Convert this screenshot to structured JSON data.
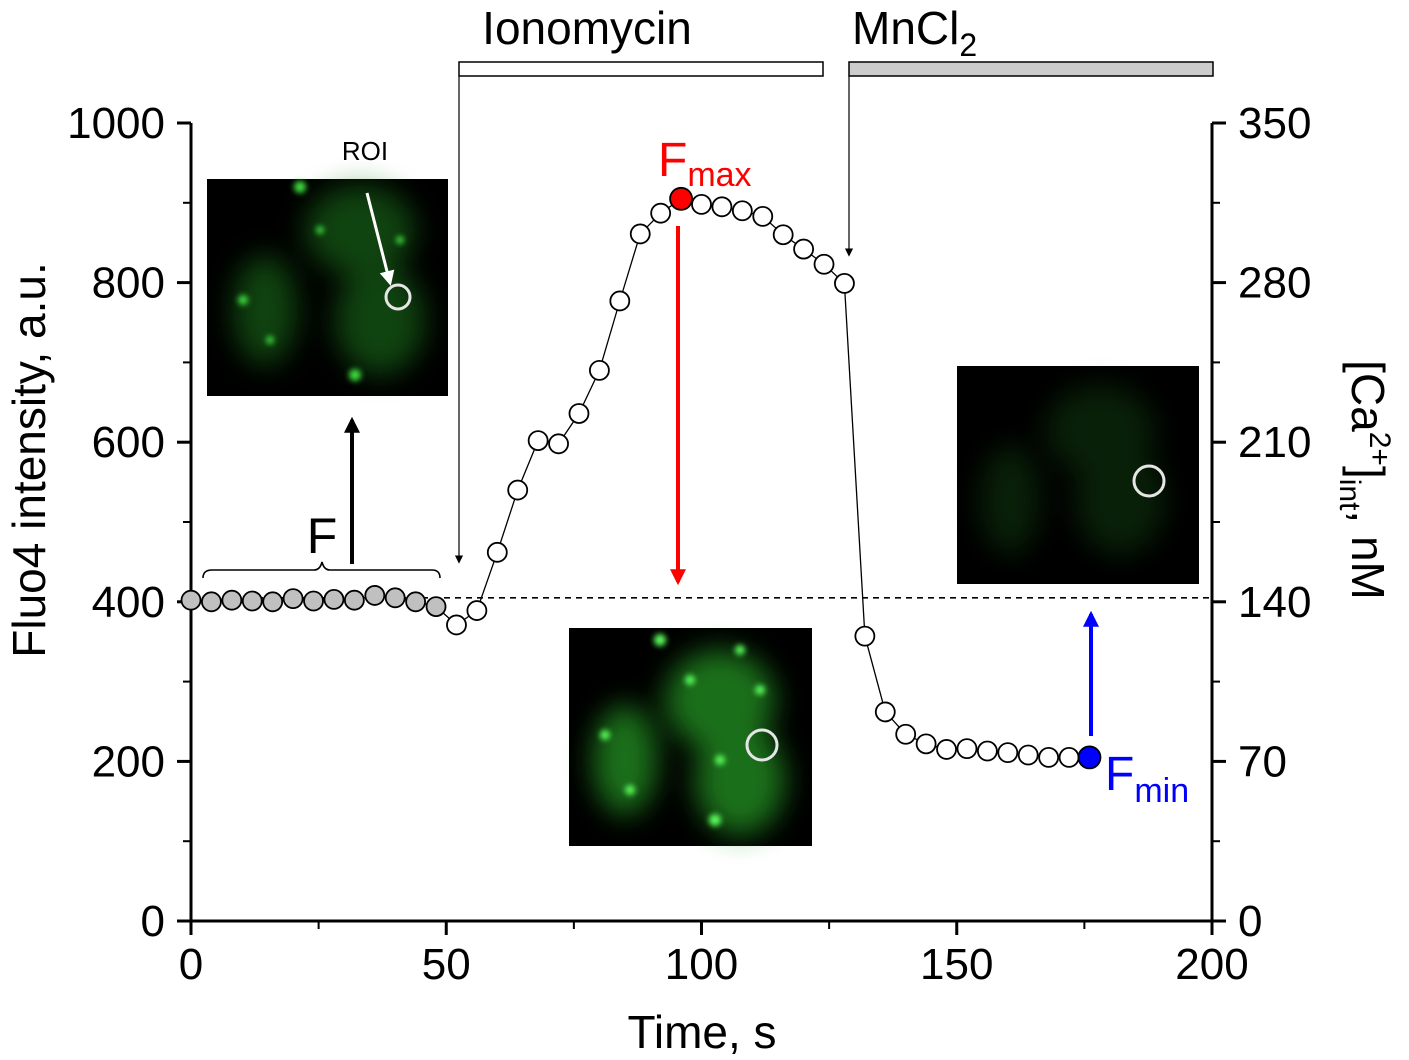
{
  "chart_data": {
    "type": "scatter",
    "xlabel": "Time, s",
    "ylabel": "Fluo4 intensity, a.u.",
    "ylabel_right": {
      "base": "[Ca",
      "sup": "2+",
      "close": "]",
      "sub": "int",
      "unit": ", nM"
    },
    "xlim": [
      0,
      200
    ],
    "ylim": [
      0,
      1000
    ],
    "ylim_right": [
      0,
      350
    ],
    "x_ticks": [
      0,
      50,
      100,
      150,
      200
    ],
    "x_tick_labels": [
      "0",
      "50",
      "100",
      "150",
      "200"
    ],
    "y_ticks": [
      0,
      200,
      400,
      600,
      800,
      1000
    ],
    "y_tick_labels": [
      "0",
      "200",
      "400",
      "600",
      "800",
      "1000"
    ],
    "y_right_ticks": [
      0,
      70,
      140,
      210,
      280,
      350
    ],
    "y_right_tick_labels": [
      "0",
      "70",
      "140",
      "210",
      "280",
      "350"
    ],
    "baseline_y": 405,
    "series": [
      {
        "role": "baseline",
        "color": "#c0c0c0",
        "x": [
          0,
          4,
          8,
          12,
          16,
          20,
          24,
          28,
          32,
          36,
          40,
          44,
          48
        ],
        "y": [
          402,
          400,
          402,
          401,
          400,
          404,
          401,
          403,
          402,
          408,
          405,
          400,
          394
        ]
      },
      {
        "role": "response",
        "color": "#ffffff",
        "x": [
          52,
          56,
          60,
          64,
          68,
          72,
          76,
          80,
          84,
          88,
          92,
          100,
          104,
          108,
          112,
          116,
          120,
          124,
          128,
          132,
          136,
          140,
          144,
          148,
          152,
          156,
          160,
          164,
          168,
          172
        ],
        "y": [
          371,
          389,
          462,
          540,
          602,
          598,
          636,
          690,
          777,
          861,
          887,
          898,
          895,
          890,
          883,
          860,
          842,
          823,
          799,
          357,
          262,
          234,
          222,
          215,
          216,
          213,
          211,
          208,
          205,
          205
        ]
      }
    ],
    "highlights": [
      {
        "label": "F",
        "sub": "max",
        "color": "#ff0000",
        "x": 96,
        "y": 905
      },
      {
        "label": "F",
        "sub": "min",
        "color": "#0000ff",
        "x": 176,
        "y": 205
      }
    ],
    "annotations": {
      "baseline_label": "F",
      "roi_label": "ROI",
      "ionomycin_label": "Ionomycin",
      "mncl2_label": {
        "base": "MnCl",
        "sub": "2"
      }
    }
  }
}
